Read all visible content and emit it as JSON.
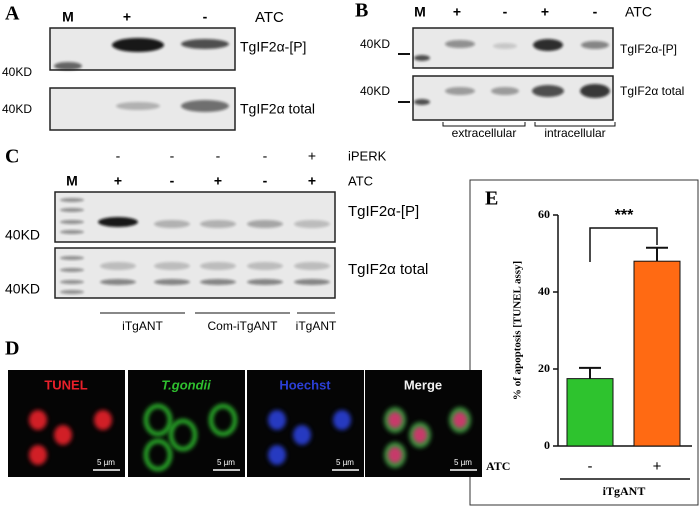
{
  "panels": {
    "A": {
      "label": "A",
      "lanes": [
        "M",
        "+",
        "-"
      ],
      "condition": "ATC",
      "rows": [
        "TgIF2α-[P]",
        "TgIF2α total"
      ],
      "markers": [
        "40KD",
        "40KD"
      ]
    },
    "B": {
      "label": "B",
      "lanes": [
        "M",
        "+",
        "-",
        "+",
        "-"
      ],
      "condition": "ATC",
      "rows": [
        "TgIF2α-[P]",
        "TgIF2α total"
      ],
      "markers": [
        "40KD",
        "40KD"
      ],
      "groups": [
        "extracellular",
        "intracellular"
      ]
    },
    "C": {
      "label": "C",
      "iperk": [
        "-",
        "-",
        "-",
        "-",
        "+"
      ],
      "iperk_label": "iPERK",
      "lanes": [
        "M",
        "+",
        "-",
        "+",
        "-",
        "+"
      ],
      "condition": "ATC",
      "rows": [
        "TgIF2α-[P]",
        "TgIF2α total"
      ],
      "markers": [
        "40KD",
        "40KD"
      ],
      "groups": [
        "iTgANT",
        "Com-iTgANT",
        "iTgANT"
      ]
    },
    "D": {
      "label": "D",
      "stains": [
        "TUNEL",
        "T.gondii",
        "Hoechst",
        "Merge"
      ],
      "scale": "5 µm"
    }
  },
  "chart_data": {
    "type": "bar",
    "panel_label": "E",
    "y_label": "% of apoptosis [TUNEL assy]",
    "categories": [
      "-",
      "+"
    ],
    "category_label": "ATC",
    "group_label": "iTgANT",
    "values": [
      17.5,
      48
    ],
    "errors": [
      2.8,
      3.5
    ],
    "colors": [
      "#2ec32e",
      "#ff6a13"
    ],
    "ylim": [
      0,
      60
    ],
    "yticks": [
      0,
      20,
      40,
      60
    ],
    "significance": "***"
  }
}
